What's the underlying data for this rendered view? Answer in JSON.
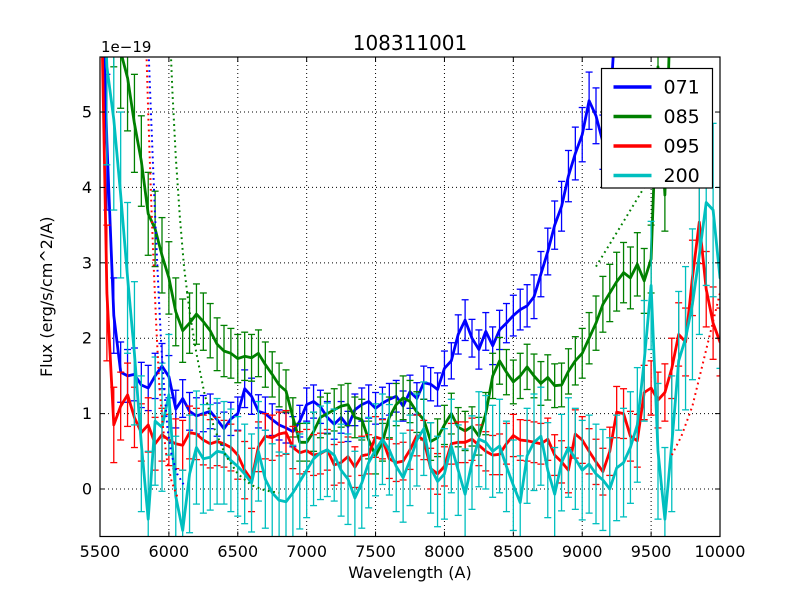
{
  "title": "108311001",
  "offset_text": "1e−19",
  "axes": {
    "x": {
      "label": "Wavelength (A)",
      "min": 5500,
      "max": 10000,
      "tick_values": [
        5500,
        6000,
        6500,
        7000,
        7500,
        8000,
        8500,
        9000,
        9500,
        10000
      ],
      "tick_labels": [
        "5500",
        "6000",
        "6500",
        "7000",
        "7500",
        "8000",
        "8500",
        "9000",
        "9500",
        "10000"
      ]
    },
    "y": {
      "label": "Flux (erg/s/cm^2/A)",
      "min": -0.63,
      "max": 5.73,
      "tick_values": [
        0,
        1,
        2,
        3,
        4,
        5
      ],
      "tick_labels": [
        "0",
        "1",
        "2",
        "3",
        "4",
        "5"
      ]
    }
  },
  "legend": {
    "entries": [
      {
        "label": "071",
        "color": "#0000ff"
      },
      {
        "label": "085",
        "color": "#008000"
      },
      {
        "label": "095",
        "color": "#ff0000"
      },
      {
        "label": "200",
        "color": "#00bfbf"
      }
    ]
  },
  "colors": {
    "background": "#ffffff",
    "axes_edge": "#000000",
    "grid": "#000000",
    "blue": "#0000ff",
    "green": "#008000",
    "red": "#ff0000",
    "cyan": "#00bfbf"
  },
  "chart_data": {
    "type": "line",
    "title": "108311001",
    "xlabel": "Wavelength (A)",
    "ylabel": "Flux (erg/s/cm^2/A)",
    "y_offset_scale": "1e-19",
    "xlim": [
      5500,
      10000
    ],
    "ylim": [
      -0.63,
      5.73
    ],
    "grid": true,
    "grid_style": "dotted",
    "legend_position": "upper right",
    "x_start": 5500,
    "x_step": 50,
    "series": [
      {
        "name": "071",
        "color": "#0000ff",
        "style": "solid",
        "with_error_bars": true,
        "values": [
          7.5,
          4.6,
          2.3,
          1.55,
          1.5,
          1.52,
          1.38,
          1.34,
          1.5,
          1.63,
          1.49,
          1.06,
          1.2,
          1.03,
          0.97,
          1.0,
          1.03,
          0.92,
          0.8,
          0.93,
          1.0,
          1.33,
          1.23,
          1.03,
          1.0,
          0.92,
          0.85,
          0.81,
          0.76,
          0.9,
          1.12,
          1.16,
          1.09,
          0.95,
          0.86,
          0.95,
          0.83,
          1.05,
          1.12,
          1.16,
          1.07,
          1.14,
          1.19,
          1.23,
          1.1,
          1.29,
          1.2,
          1.41,
          1.39,
          1.32,
          1.6,
          1.7,
          2.05,
          2.24,
          2.0,
          1.85,
          2.09,
          1.9,
          2.11,
          2.2,
          2.3,
          2.38,
          2.43,
          2.55,
          2.85,
          3.15,
          3.5,
          3.75,
          4.15,
          4.45,
          4.7,
          5.15,
          4.95,
          4.6,
          5.0,
          6.5,
          null,
          null,
          null,
          null,
          null,
          null,
          null,
          null,
          null,
          null,
          null,
          null,
          null,
          null,
          null
        ],
        "err": [
          1.0,
          0.9,
          0.5,
          0.4,
          0.35,
          0.35,
          0.3,
          0.3,
          0.3,
          0.3,
          0.28,
          0.25,
          0.25,
          0.25,
          0.24,
          0.24,
          0.23,
          0.22,
          0.22,
          0.22,
          0.22,
          0.25,
          0.24,
          0.22,
          0.22,
          0.21,
          0.2,
          0.2,
          0.2,
          0.21,
          0.22,
          0.22,
          0.22,
          0.21,
          0.2,
          0.21,
          0.2,
          0.21,
          0.22,
          0.22,
          0.21,
          0.21,
          0.21,
          0.21,
          0.2,
          0.22,
          0.21,
          0.22,
          0.22,
          0.22,
          0.23,
          0.24,
          0.26,
          0.27,
          0.25,
          0.26,
          0.25,
          0.25,
          0.26,
          0.26,
          0.27,
          0.27,
          0.28,
          0.29,
          0.3,
          0.31,
          0.32,
          0.33,
          0.34,
          0.35,
          0.36,
          0.38,
          0.37,
          0.36,
          0.38,
          0.45,
          null,
          null,
          null,
          null,
          null,
          null,
          null,
          null,
          null,
          null,
          null,
          null,
          null,
          null,
          null
        ]
      },
      {
        "name": "085",
        "color": "#008000",
        "style": "solid",
        "with_error_bars": true,
        "values": [
          8,
          7.2,
          6.4,
          5.8,
          5.45,
          4.85,
          4.35,
          3.65,
          3.45,
          3.1,
          2.8,
          2.35,
          2.1,
          2.2,
          2.32,
          2.22,
          2.1,
          1.92,
          1.83,
          1.8,
          1.73,
          1.76,
          1.74,
          1.8,
          1.65,
          1.52,
          1.38,
          1.3,
          0.95,
          0.62,
          0.62,
          0.76,
          0.95,
          1.0,
          1.05,
          1.1,
          1.12,
          0.95,
          0.92,
          0.65,
          0.44,
          0.62,
          0.95,
          1.12,
          1.21,
          1.16,
          1.02,
          0.92,
          0.63,
          0.68,
          0.85,
          1.0,
          0.82,
          0.77,
          0.83,
          0.7,
          1.0,
          1.5,
          1.7,
          1.55,
          1.42,
          1.5,
          1.62,
          1.5,
          1.4,
          1.48,
          1.37,
          1.38,
          1.56,
          1.7,
          1.8,
          2.0,
          2.2,
          2.45,
          2.6,
          2.75,
          2.87,
          2.8,
          2.98,
          2.76,
          3.05,
          5.6,
          3.9,
          7.0,
          null,
          null,
          null,
          null,
          null,
          null,
          null
        ],
        "err": [
          0.9,
          0.85,
          0.8,
          0.75,
          0.7,
          0.65,
          0.6,
          0.55,
          0.5,
          0.5,
          0.48,
          0.45,
          0.42,
          0.4,
          0.4,
          0.38,
          0.36,
          0.35,
          0.34,
          0.33,
          0.32,
          0.32,
          0.31,
          0.31,
          0.3,
          0.3,
          0.29,
          0.28,
          0.26,
          0.25,
          0.25,
          0.26,
          0.27,
          0.27,
          0.28,
          0.28,
          0.28,
          0.27,
          0.27,
          0.25,
          0.24,
          0.25,
          0.27,
          0.28,
          0.29,
          0.28,
          0.27,
          0.27,
          0.25,
          0.25,
          0.26,
          0.27,
          0.26,
          0.26,
          0.26,
          0.25,
          0.28,
          0.3,
          0.31,
          0.3,
          0.29,
          0.3,
          0.3,
          0.29,
          0.29,
          0.3,
          0.29,
          0.29,
          0.3,
          0.32,
          0.33,
          0.34,
          0.36,
          0.37,
          0.38,
          0.39,
          0.4,
          0.41,
          0.42,
          0.43,
          0.45,
          0.5,
          0.48,
          0.55,
          null,
          null,
          null,
          null,
          null,
          null,
          null
        ]
      },
      {
        "name": "095",
        "color": "#ff0000",
        "style": "solid",
        "with_error_bars": true,
        "values": [
          7.5,
          2.6,
          0.85,
          1.1,
          1.25,
          0.95,
          0.75,
          0.85,
          0.6,
          0.72,
          0.65,
          0.6,
          0.58,
          0.75,
          0.73,
          0.65,
          0.6,
          0.63,
          0.6,
          0.55,
          0.45,
          0.25,
          0.12,
          0.56,
          0.7,
          0.68,
          0.73,
          0.75,
          0.55,
          0.48,
          0.51,
          0.45,
          0.47,
          0.52,
          0.32,
          0.35,
          0.43,
          0.29,
          0.44,
          0.46,
          0.69,
          0.66,
          0.4,
          0.35,
          0.37,
          0.52,
          0.71,
          0.65,
          0.27,
          0.2,
          0.3,
          0.6,
          0.62,
          0.62,
          0.66,
          0.58,
          0.5,
          0.45,
          0.46,
          0.6,
          0.71,
          0.65,
          0.64,
          0.62,
          0.6,
          0.66,
          0.45,
          0.36,
          0.25,
          0.73,
          0.65,
          0.5,
          0.36,
          0.23,
          0.5,
          1.02,
          1.0,
          0.7,
          0.64,
          1.28,
          1.34,
          1.18,
          1.28,
          1.6,
          2.05,
          1.95,
          2.8,
          3.54,
          2.65,
          2.2,
          1.95
        ],
        "err": [
          1.2,
          0.9,
          0.5,
          0.45,
          0.42,
          0.4,
          0.38,
          0.36,
          0.35,
          0.35,
          0.34,
          0.33,
          0.33,
          0.35,
          0.34,
          0.33,
          0.32,
          0.32,
          0.31,
          0.31,
          0.32,
          0.38,
          0.42,
          0.33,
          0.3,
          0.3,
          0.29,
          0.29,
          0.28,
          0.28,
          0.28,
          0.27,
          0.27,
          0.27,
          0.27,
          0.27,
          0.26,
          0.27,
          0.26,
          0.26,
          0.27,
          0.26,
          0.26,
          0.25,
          0.25,
          0.26,
          0.27,
          0.26,
          0.27,
          0.27,
          0.26,
          0.27,
          0.27,
          0.27,
          0.28,
          0.27,
          0.26,
          0.26,
          0.27,
          0.27,
          0.28,
          0.27,
          0.27,
          0.27,
          0.27,
          0.28,
          0.27,
          0.28,
          0.3,
          0.32,
          0.31,
          0.3,
          0.3,
          0.31,
          0.32,
          0.34,
          0.33,
          0.33,
          0.35,
          0.36,
          0.36,
          0.37,
          0.38,
          0.4,
          0.42,
          0.45,
          0.5,
          0.55,
          0.5,
          0.48,
          0.45
        ]
      },
      {
        "name": "200",
        "color": "#00bfbf",
        "style": "solid",
        "with_error_bars": true,
        "values": [
          8,
          5.6,
          4.9,
          3.9,
          2.8,
          1.8,
          0.6,
          -0.4,
          0.9,
          0.82,
          1.25,
          -0.1,
          -0.55,
          0.2,
          0.55,
          0.4,
          0.42,
          0.5,
          0.48,
          0.38,
          0.3,
          0.2,
          0.08,
          0.5,
          0.13,
          -0.05,
          -0.15,
          -0.17,
          -0.05,
          0.1,
          0.25,
          0.4,
          0.48,
          0.52,
          0.45,
          0.25,
          0.13,
          -0.12,
          0.08,
          0.35,
          0.52,
          0.66,
          0.52,
          0.3,
          0.15,
          0.38,
          0.65,
          0.8,
          0.28,
          0.1,
          0.2,
          0.57,
          0.25,
          -0.07,
          0.35,
          0.66,
          0.62,
          0.5,
          0.57,
          0.3,
          0.05,
          -0.18,
          0.44,
          0.62,
          0.7,
          0.25,
          -0.07,
          0.35,
          0.55,
          0.4,
          0.25,
          0.33,
          0.2,
          0.12,
          0.0,
          0.28,
          0.35,
          0.55,
          0.85,
          1.7,
          2.7,
          0.5,
          -0.4,
          0.6,
          1.7,
          2.0,
          2.45,
          3.1,
          3.8,
          3.7,
          2.8
        ],
        "err": [
          1.5,
          1.3,
          1.2,
          1.1,
          1.0,
          0.95,
          0.9,
          0.9,
          0.85,
          0.85,
          0.8,
          0.8,
          0.8,
          0.78,
          0.75,
          0.72,
          0.7,
          0.7,
          0.68,
          0.68,
          0.66,
          0.66,
          0.65,
          0.66,
          0.65,
          0.65,
          0.64,
          0.64,
          0.63,
          0.63,
          0.63,
          0.62,
          0.62,
          0.62,
          0.61,
          0.61,
          0.6,
          0.62,
          0.6,
          0.6,
          0.61,
          0.6,
          0.6,
          0.6,
          0.59,
          0.6,
          0.61,
          0.62,
          0.6,
          0.6,
          0.6,
          0.62,
          0.6,
          0.6,
          0.62,
          0.63,
          0.62,
          0.61,
          0.62,
          0.6,
          0.6,
          0.62,
          0.63,
          0.64,
          0.65,
          0.63,
          0.62,
          0.64,
          0.66,
          0.67,
          0.66,
          0.65,
          0.66,
          0.67,
          0.68,
          0.7,
          0.72,
          0.74,
          0.76,
          0.8,
          0.85,
          0.9,
          0.95,
          0.9,
          0.92,
          0.95,
          1.0,
          1.05,
          1.1,
          1.15,
          1.2
        ]
      }
    ],
    "dotted_series": [
      {
        "name": "071-dotted-left",
        "color": "#0000ff",
        "x": [
          5845,
          5865,
          5885,
          5905,
          5925,
          5945,
          5965,
          5990,
          6020,
          6060,
          6110
        ],
        "values": [
          6.2,
          5.2,
          4.3,
          3.4,
          2.6,
          1.9,
          1.35,
          0.8,
          0.45,
          0.2,
          0.05
        ]
      },
      {
        "name": "095-dotted-left",
        "color": "#ff0000",
        "x": [
          5830,
          5850,
          5870,
          5890,
          5910,
          5930,
          5955,
          5985,
          6020,
          6060
        ],
        "values": [
          6.2,
          5.0,
          3.9,
          2.95,
          2.1,
          1.4,
          0.85,
          0.4,
          0.1,
          -0.1
        ]
      },
      {
        "name": "085-dotted-left",
        "color": "#008000",
        "x": [
          6005,
          6025,
          6050,
          6080,
          6110,
          6150,
          6200,
          6260,
          6330,
          6410,
          6500,
          6600,
          6700,
          6800
        ],
        "values": [
          6.2,
          5.3,
          4.4,
          3.6,
          2.95,
          2.35,
          1.8,
          1.25,
          0.8,
          0.45,
          0.2,
          0.05,
          -0.02,
          -0.05
        ]
      },
      {
        "name": "085-dotted-right",
        "color": "#008000",
        "x": [
          9100,
          9200,
          9300,
          9400,
          9500,
          9550
        ],
        "values": [
          2.95,
          3.25,
          3.55,
          3.85,
          4.15,
          4.3
        ]
      },
      {
        "name": "095-dotted-right",
        "color": "#ff0000",
        "x": [
          9650,
          9720,
          9800,
          9880,
          9960,
          10000
        ],
        "values": [
          0.45,
          0.7,
          1.1,
          1.7,
          2.3,
          2.6
        ]
      }
    ]
  }
}
